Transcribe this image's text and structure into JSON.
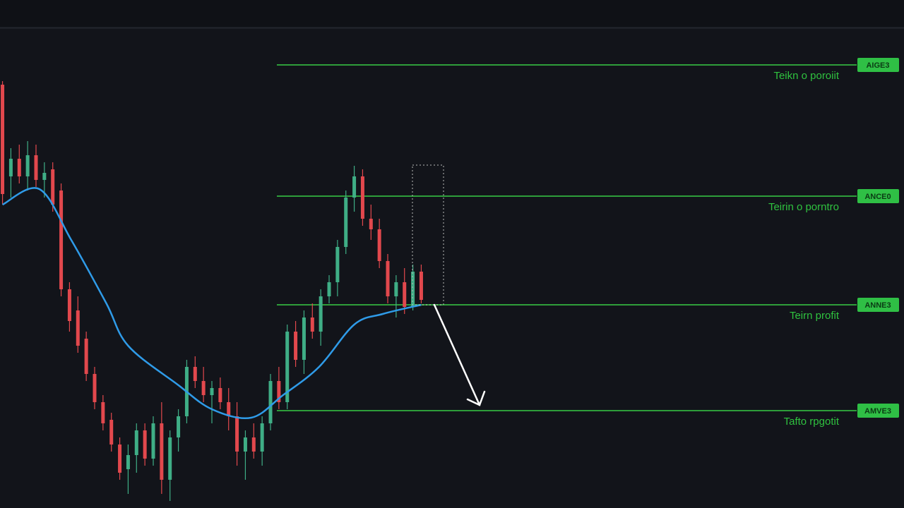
{
  "chart_data": {
    "type": "candlestick",
    "xlim": [
      -0.3,
      50.3
    ],
    "ylim": [
      0,
      720
    ],
    "up_color": "#3fae86",
    "down_color": "#e2484d",
    "open": [
      600,
      470,
      495,
      470,
      500,
      465,
      480,
      450,
      310,
      280,
      240,
      190,
      150,
      125,
      90,
      55,
      75,
      110,
      70,
      120,
      40,
      100,
      130,
      200,
      180,
      160,
      170,
      150,
      130,
      80,
      100,
      80,
      120,
      180,
      150,
      250,
      210,
      270,
      250,
      300,
      320,
      370,
      440,
      470,
      410,
      395,
      350,
      300,
      320,
      285,
      335
    ],
    "high": [
      605,
      510,
      515,
      520,
      515,
      490,
      490,
      460,
      320,
      300,
      250,
      200,
      160,
      135,
      100,
      90,
      120,
      120,
      130,
      150,
      110,
      140,
      210,
      215,
      200,
      180,
      185,
      170,
      150,
      110,
      120,
      130,
      190,
      200,
      260,
      265,
      280,
      290,
      310,
      330,
      380,
      450,
      485,
      480,
      430,
      410,
      360,
      330,
      340,
      345,
      345
    ],
    "low": [
      430,
      440,
      460,
      450,
      455,
      440,
      420,
      300,
      250,
      220,
      180,
      140,
      110,
      80,
      40,
      20,
      50,
      60,
      60,
      20,
      10,
      80,
      120,
      170,
      150,
      120,
      140,
      110,
      60,
      40,
      70,
      60,
      110,
      140,
      140,
      200,
      190,
      240,
      230,
      290,
      300,
      360,
      420,
      400,
      380,
      340,
      290,
      270,
      275,
      280,
      290
    ],
    "close": [
      445,
      495,
      470,
      500,
      465,
      475,
      430,
      310,
      265,
      230,
      190,
      150,
      120,
      90,
      50,
      75,
      110,
      70,
      120,
      40,
      100,
      130,
      200,
      180,
      160,
      170,
      150,
      130,
      80,
      100,
      80,
      120,
      180,
      150,
      250,
      210,
      270,
      250,
      300,
      320,
      370,
      440,
      470,
      410,
      395,
      350,
      300,
      320,
      285,
      335,
      295
    ],
    "ma": {
      "color": "#2f9be8",
      "x": [
        0,
        4.4,
        8.2,
        12.4,
        15,
        20.9,
        25,
        29.7,
        33.5,
        37.8,
        42,
        45.4,
        50
      ],
      "values": [
        430,
        452,
        380,
        290,
        230,
        175,
        140,
        128,
        160,
        200,
        260,
        275,
        288
      ]
    },
    "levels": [
      {
        "value": 628,
        "tag": "AIGE3",
        "label": "Teikn o poroiit"
      },
      {
        "value": 442,
        "tag": "ANCE0",
        "label": "Teirin o porntro"
      },
      {
        "value": 288,
        "tag": "ANNE3",
        "label": "Teirn profit"
      },
      {
        "value": 138,
        "tag": "AMVE3",
        "label": "Tafto rpgotit"
      }
    ],
    "level_color": "#2e9e3a"
  }
}
